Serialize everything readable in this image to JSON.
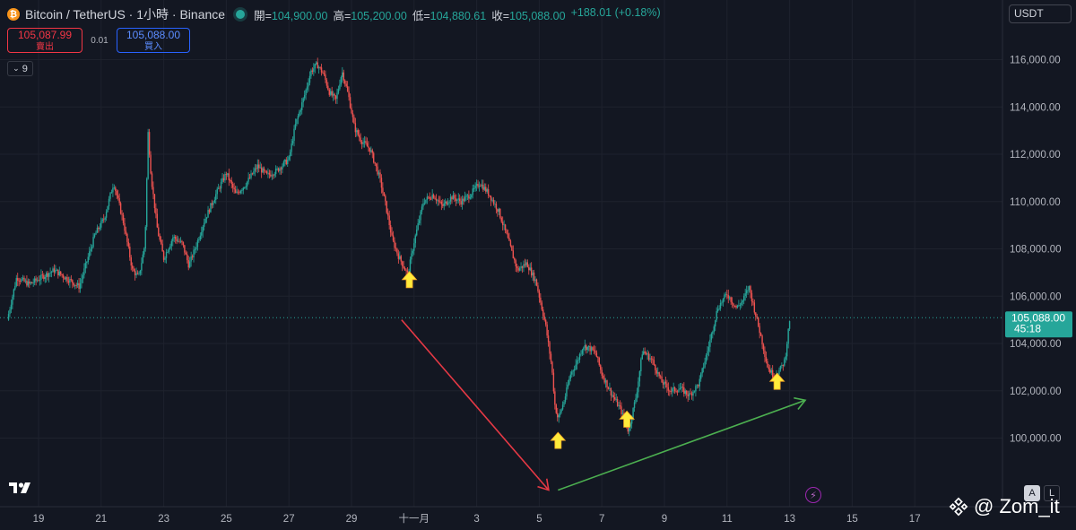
{
  "header": {
    "title": "Bitcoin / TetherUS · 1小時 · Binance",
    "ohlc": {
      "open_label": "開=",
      "open": "104,900.00",
      "high_label": "高=",
      "high": "105,200.00",
      "low_label": "低=",
      "low": "104,880.61",
      "close_label": "收=",
      "close": "105,088.00",
      "change": "+188.01 (+0.18%)"
    }
  },
  "trade": {
    "sell_price": "105,087.99",
    "sell_label": "賣出",
    "spread": "0.01",
    "buy_price": "105,088.00",
    "buy_label": "買入"
  },
  "indicator": {
    "count": "9"
  },
  "currency": "USDT",
  "price_tag": {
    "price": "105,088.00",
    "countdown": "45:18"
  },
  "watermark": "@ Zom_it",
  "scale_buttons": {
    "auto": "A",
    "log": "L"
  },
  "colors": {
    "up": "#26a69a",
    "down": "#ef5350",
    "background": "#131722",
    "arrow_down": "#e53945",
    "arrow_up": "#4caf50",
    "marker": "#ffeb3b"
  },
  "chart_data": {
    "type": "candlestick",
    "interval": "1h",
    "ylim": [
      97500,
      118000
    ],
    "y_ticks": [
      100000,
      102000,
      104000,
      106000,
      108000,
      110000,
      112000,
      114000,
      116000
    ],
    "y_tick_labels": [
      "100,000.00",
      "102,000.00",
      "104,000.00",
      "106,000.00",
      "108,000.00",
      "110,000.00",
      "112,000.00",
      "114,000.00",
      "116,000.00"
    ],
    "x_ticks": [
      {
        "label": "19",
        "day": 19
      },
      {
        "label": "21",
        "day": 21
      },
      {
        "label": "23",
        "day": 23
      },
      {
        "label": "25",
        "day": 25
      },
      {
        "label": "27",
        "day": 27
      },
      {
        "label": "29",
        "day": 29
      },
      {
        "label": "十一月",
        "day": 31
      },
      {
        "label": "3",
        "day": 33
      },
      {
        "label": "5",
        "day": 35
      },
      {
        "label": "7",
        "day": 37
      },
      {
        "label": "9",
        "day": 39
      },
      {
        "label": "11",
        "day": 41
      },
      {
        "label": "13",
        "day": 43
      },
      {
        "label": "15",
        "day": 45
      },
      {
        "label": "17",
        "day": 47
      }
    ],
    "last_price": 105088,
    "price_path": [
      [
        18.0,
        105000
      ],
      [
        18.3,
        106800
      ],
      [
        18.7,
        106500
      ],
      [
        19.5,
        107100
      ],
      [
        20.3,
        106400
      ],
      [
        20.8,
        108600
      ],
      [
        21.1,
        109300
      ],
      [
        21.4,
        110800
      ],
      [
        21.7,
        109200
      ],
      [
        22.0,
        107100
      ],
      [
        22.2,
        106800
      ],
      [
        22.4,
        108200
      ],
      [
        22.5,
        112900
      ],
      [
        22.6,
        111000
      ],
      [
        22.8,
        108800
      ],
      [
        23.0,
        107600
      ],
      [
        23.3,
        108500
      ],
      [
        23.6,
        108200
      ],
      [
        23.8,
        107300
      ],
      [
        24.0,
        108000
      ],
      [
        24.3,
        109200
      ],
      [
        24.7,
        110400
      ],
      [
        25.0,
        111200
      ],
      [
        25.3,
        110300
      ],
      [
        25.6,
        110700
      ],
      [
        26.0,
        111500
      ],
      [
        26.3,
        111100
      ],
      [
        26.6,
        111300
      ],
      [
        27.0,
        111800
      ],
      [
        27.2,
        113200
      ],
      [
        27.5,
        114500
      ],
      [
        27.7,
        115500
      ],
      [
        27.9,
        115800
      ],
      [
        28.1,
        115400
      ],
      [
        28.3,
        114600
      ],
      [
        28.5,
        114300
      ],
      [
        28.7,
        115500
      ],
      [
        28.9,
        114500
      ],
      [
        29.1,
        113100
      ],
      [
        29.3,
        112600
      ],
      [
        29.6,
        112200
      ],
      [
        29.9,
        111000
      ],
      [
        30.1,
        109800
      ],
      [
        30.3,
        108400
      ],
      [
        30.5,
        107700
      ],
      [
        30.8,
        106900
      ],
      [
        31.0,
        108300
      ],
      [
        31.3,
        110000
      ],
      [
        31.6,
        110300
      ],
      [
        31.9,
        109800
      ],
      [
        32.2,
        110200
      ],
      [
        32.5,
        110000
      ],
      [
        32.8,
        110300
      ],
      [
        33.1,
        110800
      ],
      [
        33.4,
        110300
      ],
      [
        33.7,
        109600
      ],
      [
        34.0,
        108400
      ],
      [
        34.3,
        107100
      ],
      [
        34.6,
        107400
      ],
      [
        34.9,
        106600
      ],
      [
        35.2,
        104800
      ],
      [
        35.4,
        103000
      ],
      [
        35.5,
        101400
      ],
      [
        35.6,
        100800
      ],
      [
        35.8,
        101600
      ],
      [
        36.0,
        102700
      ],
      [
        36.2,
        103200
      ],
      [
        36.4,
        103900
      ],
      [
        36.6,
        103800
      ],
      [
        36.8,
        103600
      ],
      [
        37.0,
        102700
      ],
      [
        37.3,
        101900
      ],
      [
        37.6,
        101200
      ],
      [
        37.85,
        100300
      ],
      [
        38.1,
        101800
      ],
      [
        38.3,
        103700
      ],
      [
        38.6,
        103300
      ],
      [
        38.9,
        102400
      ],
      [
        39.2,
        102000
      ],
      [
        39.5,
        102100
      ],
      [
        39.8,
        101800
      ],
      [
        40.1,
        102300
      ],
      [
        40.4,
        103800
      ],
      [
        40.7,
        105500
      ],
      [
        41.0,
        106100
      ],
      [
        41.3,
        105500
      ],
      [
        41.5,
        105800
      ],
      [
        41.7,
        106400
      ],
      [
        41.9,
        105300
      ],
      [
        42.1,
        104200
      ],
      [
        42.3,
        103000
      ],
      [
        42.5,
        102600
      ],
      [
        42.7,
        102900
      ],
      [
        42.85,
        103300
      ],
      [
        43.0,
        105000
      ]
    ],
    "annotations": [
      {
        "type": "arrow",
        "color": "#e53945",
        "from": [
          30.6,
          105000
        ],
        "to": [
          35.3,
          97800
        ]
      },
      {
        "type": "arrow",
        "color": "#4caf50",
        "from": [
          35.6,
          97800
        ],
        "to": [
          43.5,
          101600
        ]
      },
      {
        "type": "marker",
        "shape": "up-arrow",
        "at": [
          30.85,
          106700
        ]
      },
      {
        "type": "marker",
        "shape": "up-arrow",
        "at": [
          35.6,
          99900
        ]
      },
      {
        "type": "marker",
        "shape": "up-arrow",
        "at": [
          37.8,
          100800
        ]
      },
      {
        "type": "marker",
        "shape": "up-arrow",
        "at": [
          42.6,
          102400
        ]
      }
    ]
  }
}
